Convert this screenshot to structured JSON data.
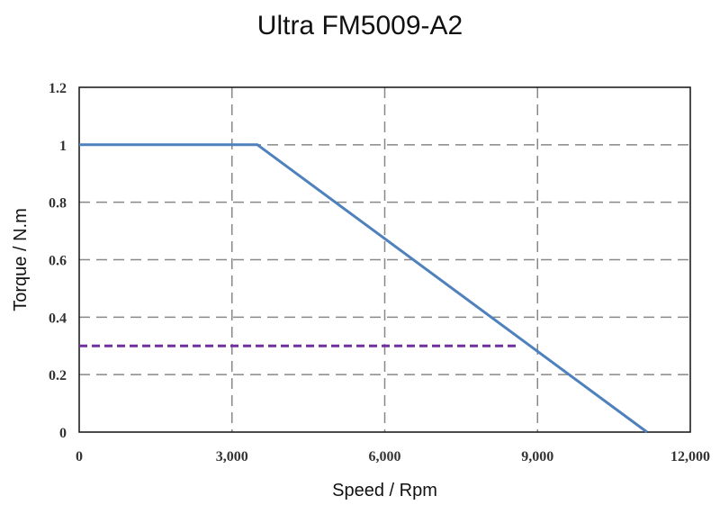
{
  "chart_data": {
    "type": "line",
    "title": "Ultra FM5009-A2",
    "xlabel": "Speed / Rpm",
    "ylabel": "Torque / N.m",
    "xlim": [
      0,
      12000
    ],
    "ylim": [
      0,
      1.2
    ],
    "x_ticks": [
      0,
      3000,
      6000,
      9000,
      12000
    ],
    "x_tick_labels": [
      "0",
      "3,000",
      "6,000",
      "9,000",
      "12,000"
    ],
    "y_ticks": [
      0,
      0.2,
      0.4,
      0.6,
      0.8,
      1,
      1.2
    ],
    "y_tick_labels": [
      "0",
      "0.2",
      "0.4",
      "0.6",
      "0.8",
      "1",
      "1.2"
    ],
    "grid": true,
    "series": [
      {
        "color": "#4f81bd",
        "style": "solid",
        "points": [
          [
            0,
            1.0
          ],
          [
            3500,
            1.0
          ],
          [
            11150,
            0.0
          ]
        ]
      },
      {
        "color": "#7030a0",
        "style": "dashed",
        "points": [
          [
            0,
            0.3
          ],
          [
            8650,
            0.3
          ]
        ]
      }
    ]
  }
}
